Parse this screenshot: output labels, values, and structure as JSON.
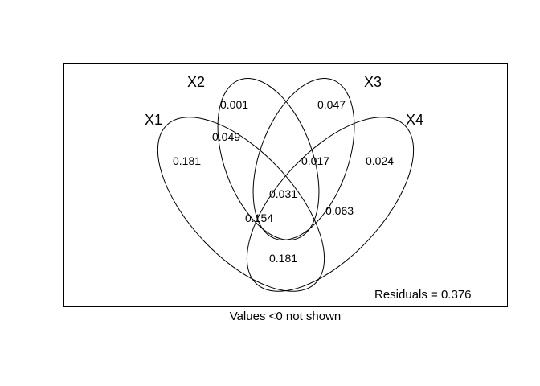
{
  "sets": {
    "x1": "X1",
    "x2": "X2",
    "x3": "X3",
    "x4": "X4"
  },
  "regions": {
    "x1_only": "0.181",
    "x2_only": "0.001",
    "x3_only": "0.047",
    "x4_only": "0.024",
    "x1_x2": "0.049",
    "x3_x4": "0.017",
    "x1_x2_x3_x4_center": "0.031",
    "x1_x4_lower": "0.154",
    "x2_x3_lower": "0.063",
    "bottom": "0.181"
  },
  "residuals": "Residuals = 0.376",
  "footnote": "Values <0 not shown"
}
